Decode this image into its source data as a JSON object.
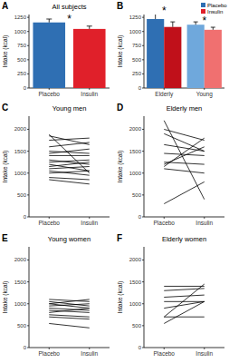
{
  "chart_data": [
    {
      "type": "bar",
      "panel": "A",
      "title": "All subjects",
      "ylabel": "Intake (kcal)",
      "categories": [
        "Placebo",
        "Insulin"
      ],
      "values": [
        1160,
        1045
      ],
      "errors": [
        60,
        50
      ],
      "colors": [
        "#2f6fb3",
        "#e0202a"
      ],
      "ylim": [
        0,
        1300
      ],
      "yticks": [
        0,
        250,
        500,
        750,
        1000,
        1250
      ],
      "annotations": [
        "*"
      ],
      "grid": false
    },
    {
      "type": "bar",
      "panel": "B",
      "ylabel": "Intake (kcal)",
      "categories": [
        "Elderly",
        "Young"
      ],
      "series": [
        {
          "name": "Placebo",
          "color": "#2f6fb3",
          "colors": [
            "#2f6fb3",
            "#6fa8dc"
          ],
          "values": [
            1220,
            1120
          ],
          "errors": [
            130,
            50
          ]
        },
        {
          "name": "Insulin",
          "color": "#e0202a",
          "colors": [
            "#c0101a",
            "#f07070"
          ],
          "values": [
            1080,
            1030
          ],
          "errors": [
            90,
            45
          ]
        }
      ],
      "ylim": [
        0,
        1300
      ],
      "yticks": [
        0,
        250,
        500,
        750,
        1000,
        1250
      ],
      "annotations": [
        "*",
        "*"
      ],
      "legend": "top-right",
      "grid": false
    },
    {
      "type": "line",
      "panel": "C",
      "title": "Young men",
      "ylabel": "Intake (kcal)",
      "categories": [
        "Placebo",
        "Insulin"
      ],
      "color": "#000000",
      "series": [
        {
          "values": [
            1850,
            1650
          ]
        },
        {
          "values": [
            1750,
            1800
          ]
        },
        {
          "values": [
            1600,
            1700
          ]
        },
        {
          "values": [
            1500,
            1450
          ]
        },
        {
          "values": [
            1450,
            1550
          ]
        },
        {
          "values": [
            1400,
            1400
          ]
        },
        {
          "values": [
            1300,
            1200
          ]
        },
        {
          "values": [
            1250,
            1300
          ]
        },
        {
          "values": [
            1200,
            1050
          ]
        },
        {
          "values": [
            1150,
            1250
          ]
        },
        {
          "values": [
            1100,
            1150
          ]
        },
        {
          "values": [
            1050,
            950
          ]
        },
        {
          "values": [
            1000,
            1050
          ]
        },
        {
          "values": [
            900,
            850
          ]
        },
        {
          "values": [
            850,
            750
          ]
        },
        {
          "values": [
            1880,
            1000
          ]
        }
      ],
      "ylim": [
        0,
        2300
      ],
      "yticks": [
        0,
        500,
        1000,
        1500,
        2000
      ],
      "grid": false
    },
    {
      "type": "line",
      "panel": "D",
      "title": "Elderly men",
      "ylabel": "Intake (kcal)",
      "categories": [
        "Placebo",
        "Insulin"
      ],
      "color": "#000000",
      "series": [
        {
          "values": [
            2200,
            400
          ]
        },
        {
          "values": [
            2000,
            1750
          ]
        },
        {
          "values": [
            1900,
            1500
          ]
        },
        {
          "values": [
            1650,
            1500
          ]
        },
        {
          "values": [
            1450,
            1400
          ]
        },
        {
          "values": [
            1250,
            1200
          ]
        },
        {
          "values": [
            1200,
            1600
          ]
        },
        {
          "values": [
            1150,
            1800
          ]
        },
        {
          "values": [
            1100,
            1000
          ]
        },
        {
          "values": [
            300,
            800
          ]
        }
      ],
      "ylim": [
        0,
        2300
      ],
      "yticks": [
        0,
        500,
        1000,
        1500,
        2000
      ],
      "grid": false
    },
    {
      "type": "line",
      "panel": "E",
      "title": "Young women",
      "ylabel": "Intake (kcal)",
      "categories": [
        "Placebo",
        "Insulin"
      ],
      "color": "#000000",
      "series": [
        {
          "values": [
            1100,
            1050
          ]
        },
        {
          "values": [
            1050,
            950
          ]
        },
        {
          "values": [
            1000,
            900
          ]
        },
        {
          "values": [
            950,
            1000
          ]
        },
        {
          "values": [
            900,
            850
          ]
        },
        {
          "values": [
            850,
            800
          ]
        },
        {
          "values": [
            800,
            900
          ]
        },
        {
          "values": [
            750,
            700
          ]
        },
        {
          "values": [
            700,
            650
          ]
        },
        {
          "values": [
            550,
            450
          ]
        },
        {
          "values": [
            1000,
            1100
          ]
        }
      ],
      "ylim": [
        0,
        2300
      ],
      "yticks": [
        0,
        500,
        1000,
        1500,
        2000
      ],
      "grid": false
    },
    {
      "type": "line",
      "panel": "F",
      "title": "Elderly women",
      "ylabel": "Intake (kcal)",
      "categories": [
        "Placebo",
        "Insulin"
      ],
      "color": "#000000",
      "series": [
        {
          "values": [
            1400,
            1400
          ]
        },
        {
          "values": [
            1300,
            1350
          ]
        },
        {
          "values": [
            1050,
            1050
          ]
        },
        {
          "values": [
            900,
            1050
          ]
        },
        {
          "values": [
            700,
            1450
          ]
        },
        {
          "values": [
            700,
            700
          ]
        },
        {
          "values": [
            550,
            1050
          ]
        },
        {
          "values": [
            1150,
            1200
          ]
        }
      ],
      "ylim": [
        0,
        2300
      ],
      "yticks": [
        0,
        500,
        1000,
        1500,
        2000
      ],
      "grid": false
    }
  ]
}
